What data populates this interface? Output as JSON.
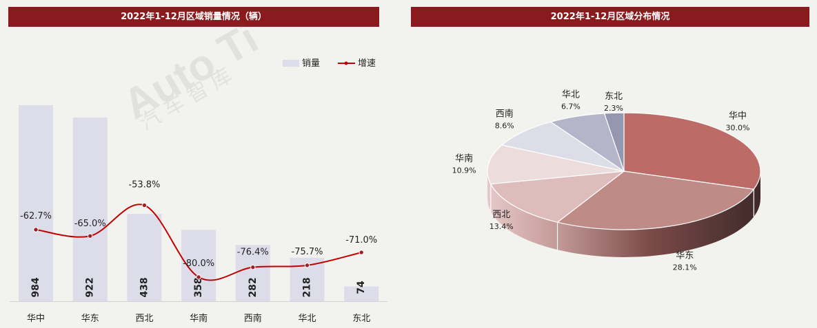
{
  "chart_data": [
    {
      "type": "bar+line",
      "title": "2022年1-12月区域销量情况（辆）",
      "categories": [
        "华中",
        "华东",
        "西北",
        "华南",
        "西南",
        "华北",
        "东北"
      ],
      "series": [
        {
          "name": "销量",
          "type": "bar",
          "values": [
            984,
            922,
            438,
            358,
            282,
            218,
            74
          ],
          "color": "#dcdde8"
        },
        {
          "name": "增速",
          "type": "line",
          "values": [
            -62.7,
            -65.0,
            -53.8,
            -80.0,
            -76.4,
            -75.7,
            -71.0
          ],
          "labels": [
            "-62.7%",
            "-65.0%",
            "-53.8%",
            "-80.0%",
            "-76.4%",
            "-75.7%",
            "-71.0%"
          ],
          "color": "#c00000"
        }
      ],
      "legend": "top-right"
    },
    {
      "type": "pie",
      "title": "2022年1-12月区域分布情况",
      "slices": [
        {
          "label": "华中",
          "value": 30.0,
          "text": "30.0%",
          "color": "#bd6b66"
        },
        {
          "label": "华东",
          "value": 28.1,
          "text": "28.1%",
          "color": "#bf8b86"
        },
        {
          "label": "西北",
          "value": 13.4,
          "text": "13.4%",
          "color": "#dfbcbc"
        },
        {
          "label": "华南",
          "value": 10.9,
          "text": "10.9%",
          "color": "#ecdcdc"
        },
        {
          "label": "西南",
          "value": 8.6,
          "text": "8.6%",
          "color": "#dcdde6"
        },
        {
          "label": "华北",
          "value": 6.7,
          "text": "6.7%",
          "color": "#b4b5c8"
        },
        {
          "label": "东北",
          "value": 2.3,
          "text": "2.3%",
          "color": "#9597b0"
        }
      ]
    }
  ],
  "watermark": {
    "text": "Auto Ti",
    "subtext": "汽 车 智 库"
  }
}
